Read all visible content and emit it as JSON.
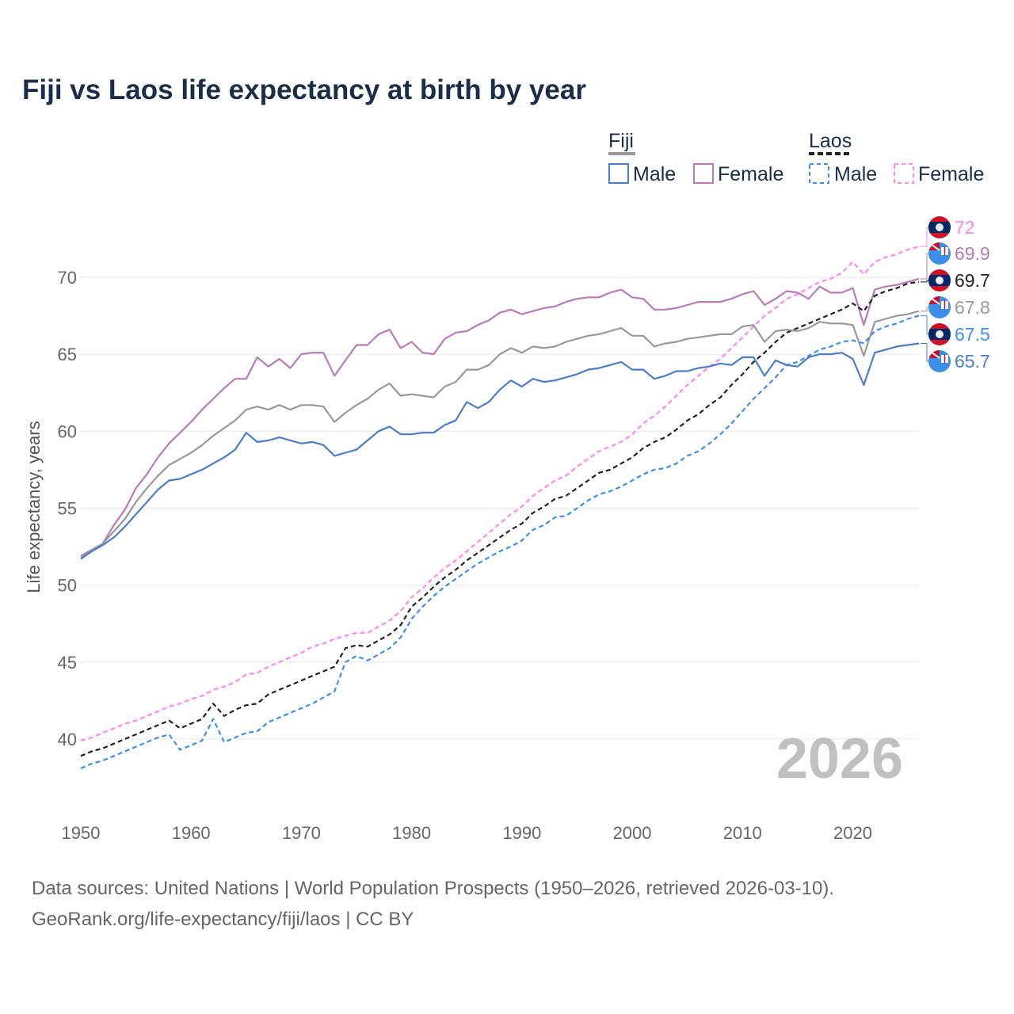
{
  "title": "Fiji vs Laos life expectancy at birth by year",
  "year_watermark": "2026",
  "source_line1": "Data sources: United Nations | World Population Prospects (1950–2026, retrieved 2026-03-10).",
  "source_line2": "GeoRank.org/life-expectancy/fiji/laos | CC BY",
  "legend": {
    "groups": [
      {
        "label": "Fiji",
        "items": [
          "Male",
          "Female"
        ]
      },
      {
        "label": "Laos",
        "items": [
          "Male",
          "Female"
        ]
      }
    ]
  },
  "chart_data": {
    "type": "line",
    "title": "Fiji vs Laos life expectancy at birth by year",
    "xlabel": "",
    "ylabel": "Life expectancy, years",
    "xlim": [
      1950,
      2026
    ],
    "ylim": [
      37.5,
      73
    ],
    "xticks": [
      1950,
      1960,
      1970,
      1980,
      1990,
      2000,
      2010,
      2020
    ],
    "yticks": [
      40,
      45,
      50,
      55,
      60,
      65,
      70
    ],
    "grid": true,
    "legend_position": "top-right",
    "x_start": 1950,
    "series": [
      {
        "name": "Laos Female",
        "country": "Laos",
        "color": "#ff88ee",
        "dashed": true,
        "end_label": "72",
        "flag": "laos",
        "values": [
          39.9,
          40.1,
          40.4,
          40.7,
          41.0,
          41.2,
          41.5,
          41.8,
          42.1,
          42.3,
          42.6,
          42.8,
          43.2,
          43.4,
          43.7,
          44.2,
          44.3,
          44.7,
          45.0,
          45.3,
          45.6,
          46.0,
          46.2,
          46.5,
          46.7,
          46.9,
          46.9,
          47.3,
          47.7,
          48.3,
          49.2,
          49.8,
          50.5,
          51.1,
          51.6,
          52.2,
          52.8,
          53.4,
          54.0,
          54.6,
          55.1,
          55.8,
          56.3,
          56.8,
          57.1,
          57.7,
          58.2,
          58.7,
          59.0,
          59.3,
          59.8,
          60.5,
          61.0,
          61.6,
          62.3,
          63.0,
          63.6,
          64.2,
          64.7,
          65.4,
          66.1,
          66.8,
          67.5,
          68.0,
          68.6,
          68.9,
          69.3,
          69.7,
          69.9,
          70.3,
          71.0,
          70.2,
          71.0,
          71.3,
          71.5,
          71.8,
          72.0
        ]
      },
      {
        "name": "Fiji Female",
        "country": "Fiji",
        "color": "#b87bb8",
        "dashed": false,
        "end_label": "69.9",
        "flag": "fiji",
        "values": [
          51.9,
          52.3,
          52.7,
          53.9,
          54.9,
          56.3,
          57.2,
          58.3,
          59.2,
          59.9,
          60.6,
          61.4,
          62.1,
          62.8,
          63.4,
          63.4,
          64.8,
          64.2,
          64.7,
          64.1,
          65.0,
          65.1,
          65.1,
          63.6,
          64.6,
          65.6,
          65.6,
          66.3,
          66.6,
          65.4,
          65.8,
          65.1,
          65.0,
          66.0,
          66.4,
          66.5,
          66.9,
          67.2,
          67.7,
          67.9,
          67.6,
          67.8,
          68.0,
          68.1,
          68.4,
          68.6,
          68.7,
          68.7,
          69.0,
          69.2,
          68.7,
          68.6,
          67.9,
          67.9,
          68.0,
          68.2,
          68.4,
          68.4,
          68.4,
          68.6,
          68.9,
          69.1,
          68.2,
          68.6,
          69.1,
          69.0,
          68.6,
          69.4,
          69.0,
          69.0,
          69.3,
          66.9,
          69.2,
          69.4,
          69.5,
          69.7,
          69.9
        ]
      },
      {
        "name": "Laos",
        "country": "Laos",
        "color": "#222222",
        "dashed": true,
        "end_label": "69.7",
        "flag": "laos",
        "values": [
          38.9,
          39.2,
          39.4,
          39.7,
          40.0,
          40.3,
          40.6,
          40.9,
          41.2,
          40.7,
          41.0,
          41.3,
          42.3,
          41.5,
          41.9,
          42.2,
          42.3,
          42.9,
          43.2,
          43.5,
          43.8,
          44.1,
          44.4,
          44.7,
          45.9,
          46.1,
          46.0,
          46.4,
          46.8,
          47.4,
          48.6,
          49.2,
          49.9,
          50.5,
          51.0,
          51.6,
          52.1,
          52.6,
          53.1,
          53.6,
          54.0,
          54.7,
          55.1,
          55.6,
          55.8,
          56.3,
          56.8,
          57.3,
          57.5,
          57.9,
          58.3,
          58.9,
          59.3,
          59.6,
          60.1,
          60.7,
          61.1,
          61.7,
          62.2,
          63.0,
          63.7,
          64.5,
          65.1,
          65.8,
          66.4,
          66.7,
          67.0,
          67.3,
          67.6,
          67.9,
          68.3,
          67.8,
          68.8,
          69.1,
          69.3,
          69.6,
          69.7
        ]
      },
      {
        "name": "Fiji",
        "country": "Fiji",
        "color": "#999999",
        "dashed": false,
        "end_label": "67.8",
        "flag": "fiji",
        "values": [
          51.8,
          52.3,
          52.7,
          53.5,
          54.3,
          55.4,
          56.3,
          57.1,
          57.8,
          58.2,
          58.6,
          59.1,
          59.7,
          60.2,
          60.7,
          61.4,
          61.6,
          61.4,
          61.7,
          61.4,
          61.7,
          61.7,
          61.6,
          60.6,
          61.2,
          61.7,
          62.1,
          62.7,
          63.1,
          62.3,
          62.4,
          62.3,
          62.2,
          62.9,
          63.2,
          64.0,
          64.0,
          64.3,
          65.0,
          65.4,
          65.1,
          65.5,
          65.4,
          65.5,
          65.8,
          66.0,
          66.2,
          66.3,
          66.5,
          66.7,
          66.2,
          66.2,
          65.5,
          65.7,
          65.8,
          66.0,
          66.1,
          66.2,
          66.3,
          66.3,
          66.8,
          66.9,
          65.8,
          66.5,
          66.6,
          66.5,
          66.7,
          67.1,
          67.0,
          67.0,
          66.9,
          64.9,
          67.1,
          67.3,
          67.5,
          67.6,
          67.8
        ]
      },
      {
        "name": "Laos Male",
        "country": "Laos",
        "color": "#3d8ef0",
        "dashed": true,
        "end_label": "67.5",
        "flag": "laos",
        "values": [
          38.1,
          38.4,
          38.6,
          38.9,
          39.2,
          39.5,
          39.8,
          40.1,
          40.3,
          39.3,
          39.6,
          39.9,
          41.3,
          39.8,
          40.1,
          40.4,
          40.5,
          41.1,
          41.4,
          41.7,
          42.0,
          42.3,
          42.7,
          43.1,
          45.0,
          45.4,
          45.1,
          45.5,
          45.9,
          46.6,
          47.8,
          48.6,
          49.3,
          49.9,
          50.4,
          50.9,
          51.4,
          51.8,
          52.2,
          52.5,
          52.9,
          53.6,
          53.9,
          54.4,
          54.5,
          55.0,
          55.5,
          55.9,
          56.1,
          56.4,
          56.8,
          57.2,
          57.5,
          57.6,
          57.9,
          58.4,
          58.7,
          59.2,
          59.8,
          60.5,
          61.3,
          62.1,
          62.8,
          63.5,
          64.3,
          64.5,
          64.9,
          65.3,
          65.5,
          65.8,
          65.9,
          65.7,
          66.5,
          66.8,
          67.0,
          67.3,
          67.5
        ]
      },
      {
        "name": "Fiji Male",
        "country": "Fiji",
        "color": "#4a7ccc",
        "dashed": false,
        "end_label": "65.7",
        "flag": "fiji",
        "values": [
          51.7,
          52.2,
          52.6,
          53.1,
          53.8,
          54.6,
          55.4,
          56.2,
          56.8,
          56.9,
          57.2,
          57.5,
          57.9,
          58.3,
          58.8,
          59.9,
          59.3,
          59.4,
          59.6,
          59.4,
          59.2,
          59.3,
          59.1,
          58.4,
          58.6,
          58.8,
          59.4,
          60.0,
          60.3,
          59.8,
          59.8,
          59.9,
          59.9,
          60.4,
          60.7,
          61.9,
          61.5,
          61.9,
          62.7,
          63.3,
          62.9,
          63.4,
          63.2,
          63.3,
          63.5,
          63.7,
          64.0,
          64.1,
          64.3,
          64.5,
          64.0,
          64.0,
          63.4,
          63.6,
          63.9,
          63.9,
          64.1,
          64.2,
          64.4,
          64.3,
          64.8,
          64.8,
          63.6,
          64.6,
          64.3,
          64.2,
          64.8,
          65.0,
          65.0,
          65.1,
          64.7,
          63.0,
          65.1,
          65.3,
          65.5,
          65.6,
          65.7
        ]
      }
    ]
  }
}
